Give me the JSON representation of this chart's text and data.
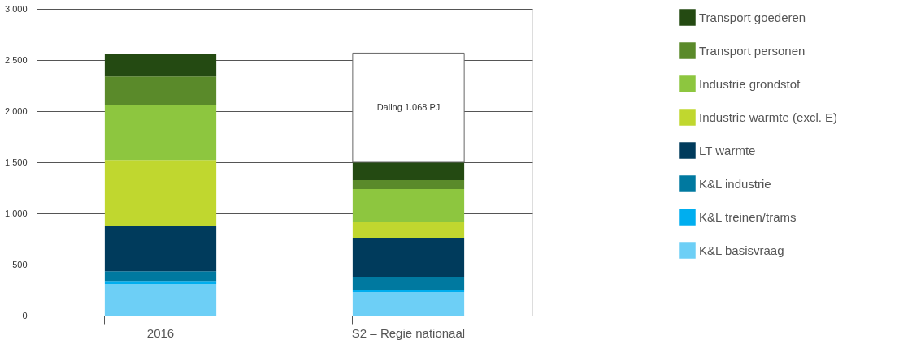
{
  "chart_data": {
    "type": "bar",
    "stacked": true,
    "categories": [
      "2016",
      "S2 – Regie nationaal"
    ],
    "series": [
      {
        "name": "K&L basisvraag",
        "color": "#6dcff6",
        "values": [
          310,
          230
        ]
      },
      {
        "name": "K&L treinen/trams",
        "color": "#00aeef",
        "values": [
          30,
          24
        ]
      },
      {
        "name": "K&L industrie",
        "color": "#0079a0",
        "values": [
          95,
          127
        ]
      },
      {
        "name": "LT warmte",
        "color": "#003b5c",
        "values": [
          444,
          381
        ]
      },
      {
        "name": "Industrie warmte (excl. E)",
        "color": "#c0d72f",
        "values": [
          643,
          151
        ]
      },
      {
        "name": "Industrie grondstof",
        "color": "#8dc63f",
        "values": [
          540,
          325
        ]
      },
      {
        "name": "Transport personen",
        "color": "#5a8a2a",
        "values": [
          278,
          87
        ]
      },
      {
        "name": "Transport goederen",
        "color": "#244a12",
        "values": [
          222,
          175
        ]
      },
      {
        "color": "#ffffff",
        "values": [
          null,
          1068
        ],
        "value_labels": [
          null,
          "Daling 1.068 PJ"
        ]
      }
    ],
    "ylim": [
      0,
      3000
    ],
    "yticks": [
      {
        "value": 0,
        "label": "0"
      },
      {
        "value": 500,
        "label": "500"
      },
      {
        "value": 1000,
        "label": "1.000"
      },
      {
        "value": 1500,
        "label": "1.500"
      },
      {
        "value": 2000,
        "label": "2.000"
      },
      {
        "value": 2500,
        "label": "2.500"
      },
      {
        "value": 3000,
        "label": "3.000"
      }
    ],
    "grid": "y",
    "legend": "right"
  }
}
